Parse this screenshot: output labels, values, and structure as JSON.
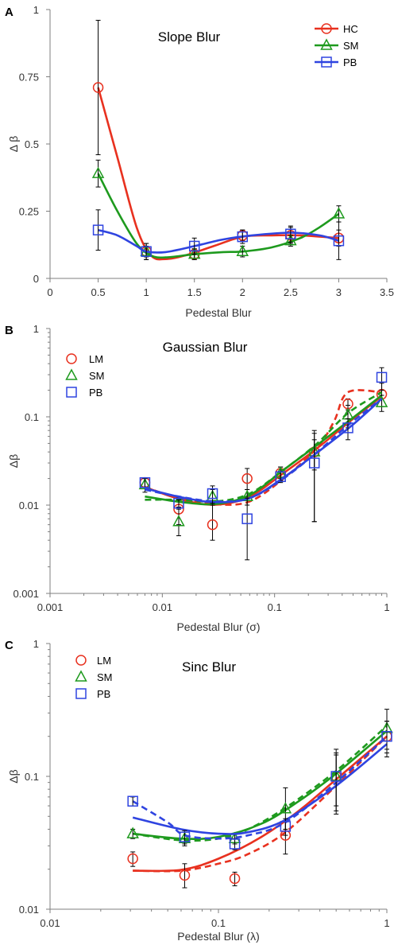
{
  "colors": {
    "red": "#e8311f",
    "green": "#1e9a1e",
    "blue": "#2f44e0",
    "axis": "#7f7f7f",
    "error": "#000000"
  },
  "chart_data": [
    {
      "panel_label": "A",
      "type": "line",
      "title": "Slope Blur",
      "xlabel": "Pedestal Blur",
      "ylabel": "Δ β",
      "xscale": "linear",
      "yscale": "linear",
      "xlim": [
        0,
        3.5
      ],
      "ylim": [
        0,
        1
      ],
      "xticks": [
        "0",
        "0.5",
        "1",
        "1.5",
        "2",
        "2.5",
        "3",
        "3.5"
      ],
      "yticks": [
        "0",
        "0.25",
        "0.5",
        "0.75",
        "1"
      ],
      "legend_position": "top-right",
      "series": [
        {
          "name": "HC",
          "color": "red",
          "marker": "circle",
          "x": [
            0.5,
            1,
            1.5,
            2,
            2.5,
            3
          ],
          "y": [
            0.71,
            0.1,
            0.09,
            0.16,
            0.16,
            0.15
          ],
          "err": [
            0.25,
            0.03,
            0.02,
            0.02,
            0.03,
            0.03
          ],
          "fit_x": [
            0.5,
            0.7,
            0.9,
            1.05,
            1.2,
            1.4,
            1.7,
            2.0,
            2.3,
            2.6,
            3.0
          ],
          "fit_y": [
            0.71,
            0.45,
            0.19,
            0.085,
            0.072,
            0.085,
            0.12,
            0.155,
            0.16,
            0.16,
            0.15
          ]
        },
        {
          "name": "SM",
          "color": "green",
          "marker": "triangle",
          "x": [
            0.5,
            1,
            1.5,
            2,
            2.5,
            3
          ],
          "y": [
            0.39,
            0.1,
            0.09,
            0.1,
            0.14,
            0.24
          ],
          "err": [
            0.05,
            0.02,
            0.02,
            0.02,
            0.02,
            0.03
          ],
          "fit_x": [
            0.5,
            0.7,
            0.9,
            1.05,
            1.2,
            1.5,
            1.8,
            2.0,
            2.3,
            2.6,
            2.8,
            3.0
          ],
          "fit_y": [
            0.39,
            0.25,
            0.13,
            0.085,
            0.078,
            0.09,
            0.098,
            0.1,
            0.115,
            0.15,
            0.19,
            0.24
          ]
        },
        {
          "name": "PB",
          "color": "blue",
          "marker": "square",
          "x": [
            0.5,
            1,
            1.5,
            2,
            2.5,
            3
          ],
          "y": [
            0.18,
            0.1,
            0.12,
            0.155,
            0.165,
            0.14
          ],
          "err": [
            0.075,
            0.03,
            0.03,
            0.025,
            0.03,
            0.07
          ],
          "fit_x": [
            0.5,
            0.7,
            0.9,
            1.0,
            1.2,
            1.5,
            1.8,
            2.1,
            2.5,
            2.8,
            3.0
          ],
          "fit_y": [
            0.18,
            0.16,
            0.12,
            0.1,
            0.098,
            0.12,
            0.145,
            0.16,
            0.17,
            0.16,
            0.14
          ]
        }
      ]
    },
    {
      "panel_label": "B",
      "type": "line",
      "title": "Gaussian Blur",
      "xlabel": "Pedestal Blur (σ)",
      "ylabel": "Δβ",
      "xscale": "log",
      "yscale": "log",
      "xlim": [
        0.001,
        1
      ],
      "ylim": [
        0.001,
        1
      ],
      "xticks": [
        "0.001",
        "0.01",
        "0.1",
        "1"
      ],
      "yticks": [
        "0.001",
        "0.01",
        "0.1",
        "1"
      ],
      "legend_position": "top-left",
      "series": [
        {
          "name": "LM",
          "color": "red",
          "marker": "circle",
          "x": [
            0.007,
            0.014,
            0.028,
            0.057,
            0.113,
            0.226,
            0.45,
            0.9
          ],
          "y": [
            0.018,
            0.009,
            0.006,
            0.02,
            0.023,
            0.04,
            0.14,
            0.18
          ],
          "err_lo": [
            0.016,
            0.006,
            0.004,
            0.015,
            0.02,
            0.025,
            0.12,
            0.13
          ],
          "err_hi": [
            0.02,
            0.012,
            0.01,
            0.026,
            0.027,
            0.055,
            0.16,
            0.24
          ],
          "fit": [
            [
              0.007,
              0.016
            ],
            [
              0.014,
              0.012
            ],
            [
              0.03,
              0.0102
            ],
            [
              0.06,
              0.011
            ],
            [
              0.12,
              0.02
            ],
            [
              0.24,
              0.045
            ],
            [
              0.34,
              0.09
            ],
            [
              0.45,
              0.19
            ],
            [
              0.9,
              0.19
            ]
          ],
          "fit2": [
            [
              0.007,
              0.016
            ],
            [
              0.015,
              0.0115
            ],
            [
              0.03,
              0.0101
            ],
            [
              0.06,
              0.0125
            ],
            [
              0.12,
              0.023
            ],
            [
              0.25,
              0.046
            ],
            [
              0.5,
              0.095
            ],
            [
              0.9,
              0.17
            ]
          ]
        },
        {
          "name": "SM",
          "color": "green",
          "marker": "triangle",
          "x": [
            0.007,
            0.014,
            0.028,
            0.057,
            0.113,
            0.226,
            0.45,
            0.9
          ],
          "y": [
            0.017,
            0.0065,
            0.0125,
            0.0125,
            0.023,
            0.04,
            0.105,
            0.145
          ],
          "err_lo": [
            0.014,
            0.0045,
            0.01,
            0.01,
            0.019,
            0.0065,
            0.075,
            0.115
          ],
          "err_hi": [
            0.02,
            0.009,
            0.015,
            0.015,
            0.027,
            0.07,
            0.135,
            0.175
          ],
          "fit": [
            [
              0.007,
              0.0115
            ],
            [
              0.014,
              0.0115
            ],
            [
              0.03,
              0.011
            ],
            [
              0.06,
              0.0135
            ],
            [
              0.12,
              0.025
            ],
            [
              0.24,
              0.05
            ],
            [
              0.45,
              0.11
            ],
            [
              0.9,
              0.19
            ]
          ],
          "fit2": [
            [
              0.007,
              0.0125
            ],
            [
              0.015,
              0.0108
            ],
            [
              0.03,
              0.0103
            ],
            [
              0.06,
              0.013
            ],
            [
              0.12,
              0.025
            ],
            [
              0.25,
              0.05
            ],
            [
              0.5,
              0.098
            ],
            [
              0.9,
              0.175
            ]
          ]
        },
        {
          "name": "PB",
          "color": "blue",
          "marker": "square",
          "x": [
            0.007,
            0.014,
            0.028,
            0.057,
            0.113,
            0.226,
            0.45,
            0.9
          ],
          "y": [
            0.018,
            0.0105,
            0.0135,
            0.007,
            0.021,
            0.03,
            0.075,
            0.28
          ],
          "err_lo": [
            0.016,
            0.0095,
            0.0105,
            0.0024,
            0.018,
            0.0065,
            0.055,
            0.2
          ],
          "err_hi": [
            0.02,
            0.0115,
            0.0165,
            0.012,
            0.024,
            0.065,
            0.095,
            0.36
          ],
          "fit": [
            [
              0.007,
              0.015
            ],
            [
              0.014,
              0.0125
            ],
            [
              0.03,
              0.011
            ],
            [
              0.06,
              0.012
            ],
            [
              0.12,
              0.02
            ],
            [
              0.24,
              0.04
            ],
            [
              0.45,
              0.08
            ],
            [
              0.9,
              0.16
            ]
          ],
          "fit2": [
            [
              0.007,
              0.0155
            ],
            [
              0.015,
              0.0122
            ],
            [
              0.03,
              0.0108
            ],
            [
              0.06,
              0.012
            ],
            [
              0.12,
              0.0205
            ],
            [
              0.25,
              0.041
            ],
            [
              0.5,
              0.082
            ],
            [
              0.9,
              0.16
            ]
          ]
        }
      ]
    },
    {
      "panel_label": "C",
      "type": "line",
      "title": "Sinc Blur",
      "xlabel": "Pedestal Blur (λ)",
      "ylabel": "Δβ",
      "xscale": "log",
      "yscale": "log",
      "xlim": [
        0.01,
        1
      ],
      "ylim": [
        0.01,
        1
      ],
      "xticks": [
        "0.01",
        "0.1",
        "1"
      ],
      "yticks": [
        "0.01",
        "0.1",
        "1"
      ],
      "legend_position": "top-left",
      "series": [
        {
          "name": "LM",
          "color": "red",
          "marker": "circle",
          "x": [
            0.031,
            0.063,
            0.125,
            0.25,
            0.5,
            1
          ],
          "y": [
            0.024,
            0.018,
            0.017,
            0.036,
            0.1,
            0.2
          ],
          "err_lo": [
            0.021,
            0.0145,
            0.015,
            0.026,
            0.055,
            0.14
          ],
          "err_hi": [
            0.027,
            0.022,
            0.019,
            0.046,
            0.145,
            0.26
          ],
          "fit": [
            [
              0.031,
              0.0195
            ],
            [
              0.06,
              0.0195
            ],
            [
              0.1,
              0.022
            ],
            [
              0.15,
              0.026
            ],
            [
              0.25,
              0.038
            ],
            [
              0.5,
              0.085
            ],
            [
              1,
              0.2
            ]
          ],
          "fit2": [
            [
              0.031,
              0.0195
            ],
            [
              0.06,
              0.0198
            ],
            [
              0.1,
              0.024
            ],
            [
              0.18,
              0.035
            ],
            [
              0.3,
              0.055
            ],
            [
              0.5,
              0.095
            ],
            [
              1,
              0.2
            ]
          ]
        },
        {
          "name": "SM",
          "color": "green",
          "marker": "triangle",
          "x": [
            0.031,
            0.063,
            0.125,
            0.25,
            0.5,
            1
          ],
          "y": [
            0.037,
            0.034,
            0.034,
            0.057,
            0.1,
            0.23
          ],
          "err_lo": [
            0.034,
            0.03,
            0.031,
            0.04,
            0.06,
            0.15
          ],
          "err_hi": [
            0.04,
            0.038,
            0.037,
            0.082,
            0.16,
            0.32
          ],
          "fit": [
            [
              0.031,
              0.037
            ],
            [
              0.06,
              0.033
            ],
            [
              0.1,
              0.034
            ],
            [
              0.15,
              0.04
            ],
            [
              0.25,
              0.058
            ],
            [
              0.5,
              0.11
            ],
            [
              1,
              0.24
            ]
          ],
          "fit2": [
            [
              0.031,
              0.037
            ],
            [
              0.06,
              0.034
            ],
            [
              0.1,
              0.035
            ],
            [
              0.18,
              0.044
            ],
            [
              0.3,
              0.065
            ],
            [
              0.5,
              0.105
            ],
            [
              1,
              0.22
            ]
          ]
        },
        {
          "name": "PB",
          "color": "blue",
          "marker": "square",
          "x": [
            0.031,
            0.063,
            0.125,
            0.25,
            0.5,
            1
          ],
          "y": [
            0.065,
            0.035,
            0.031,
            0.042,
            0.1,
            0.2
          ],
          "err_lo": [
            0.06,
            0.031,
            0.028,
            0.036,
            0.052,
            0.16
          ],
          "err_hi": [
            0.07,
            0.039,
            0.034,
            0.048,
            0.15,
            0.26
          ],
          "fit": [
            [
              0.031,
              0.065
            ],
            [
              0.05,
              0.045
            ],
            [
              0.063,
              0.036
            ],
            [
              0.1,
              0.034
            ],
            [
              0.15,
              0.036
            ],
            [
              0.25,
              0.045
            ],
            [
              0.5,
              0.09
            ],
            [
              1,
              0.2
            ]
          ],
          "fit2": [
            [
              0.031,
              0.049
            ],
            [
              0.06,
              0.04
            ],
            [
              0.1,
              0.037
            ],
            [
              0.15,
              0.038
            ],
            [
              0.25,
              0.047
            ],
            [
              0.5,
              0.085
            ],
            [
              1,
              0.175
            ]
          ]
        }
      ]
    }
  ]
}
